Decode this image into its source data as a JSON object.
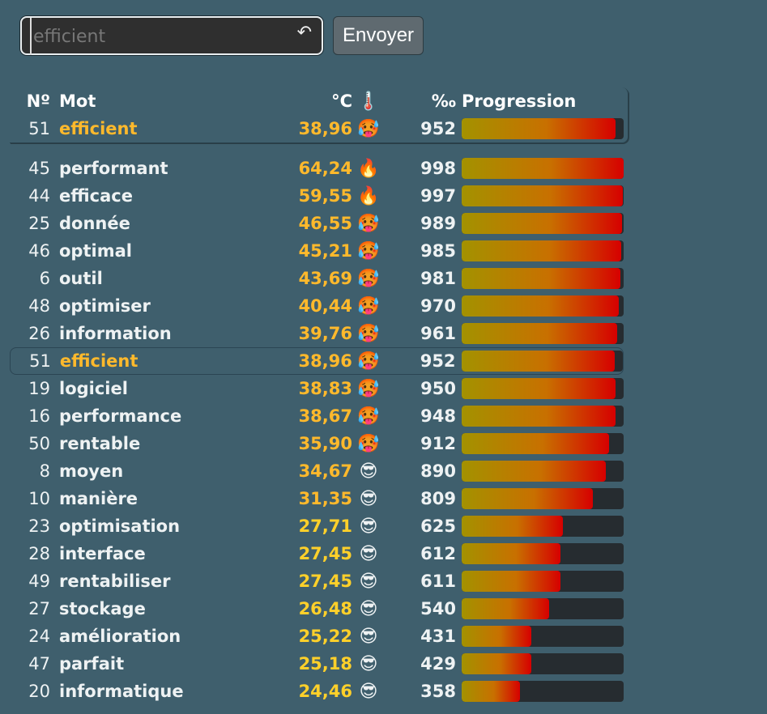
{
  "form": {
    "placeholder": "efficient",
    "send_label": "Envoyer",
    "undo_icon": "undo-icon"
  },
  "columns": {
    "num": "Nº",
    "word": "Mot",
    "temp": "°C",
    "temp_icon": "🌡️",
    "permil": "‰",
    "progress": "Progression"
  },
  "last_guess": {
    "num": "51",
    "word": "efficient",
    "temp": "38,96",
    "emoji": "🥵",
    "permil": "952",
    "progress": 0.952
  },
  "rows": [
    {
      "num": "45",
      "word": "performant",
      "temp": "64,24",
      "emoji": "🔥",
      "permil": "998",
      "progress": 0.998
    },
    {
      "num": "44",
      "word": "efficace",
      "temp": "59,55",
      "emoji": "🔥",
      "permil": "997",
      "progress": 0.997
    },
    {
      "num": "25",
      "word": "donnée",
      "temp": "46,55",
      "emoji": "🥵",
      "permil": "989",
      "progress": 0.989
    },
    {
      "num": "46",
      "word": "optimal",
      "temp": "45,21",
      "emoji": "🥵",
      "permil": "985",
      "progress": 0.985
    },
    {
      "num": "6",
      "word": "outil",
      "temp": "43,69",
      "emoji": "🥵",
      "permil": "981",
      "progress": 0.981
    },
    {
      "num": "48",
      "word": "optimiser",
      "temp": "40,44",
      "emoji": "🥵",
      "permil": "970",
      "progress": 0.97
    },
    {
      "num": "26",
      "word": "information",
      "temp": "39,76",
      "emoji": "🥵",
      "permil": "961",
      "progress": 0.961
    },
    {
      "num": "51",
      "word": "efficient",
      "temp": "38,96",
      "emoji": "🥵",
      "permil": "952",
      "progress": 0.952,
      "current": true
    },
    {
      "num": "19",
      "word": "logiciel",
      "temp": "38,83",
      "emoji": "🥵",
      "permil": "950",
      "progress": 0.95
    },
    {
      "num": "16",
      "word": "performance",
      "temp": "38,67",
      "emoji": "🥵",
      "permil": "948",
      "progress": 0.948
    },
    {
      "num": "50",
      "word": "rentable",
      "temp": "35,90",
      "emoji": "🥵",
      "permil": "912",
      "progress": 0.912
    },
    {
      "num": "8",
      "word": "moyen",
      "temp": "34,67",
      "emoji": "😎",
      "permil": "890",
      "progress": 0.89
    },
    {
      "num": "10",
      "word": "manière",
      "temp": "31,35",
      "emoji": "😎",
      "permil": "809",
      "progress": 0.809
    },
    {
      "num": "23",
      "word": "optimisation",
      "temp": "27,71",
      "emoji": "😎",
      "permil": "625",
      "progress": 0.625
    },
    {
      "num": "28",
      "word": "interface",
      "temp": "27,45",
      "emoji": "😎",
      "permil": "612",
      "progress": 0.612
    },
    {
      "num": "49",
      "word": "rentabiliser",
      "temp": "27,45",
      "emoji": "😎",
      "permil": "611",
      "progress": 0.611
    },
    {
      "num": "27",
      "word": "stockage",
      "temp": "26,48",
      "emoji": "😎",
      "permil": "540",
      "progress": 0.54
    },
    {
      "num": "24",
      "word": "amélioration",
      "temp": "25,22",
      "emoji": "😎",
      "permil": "431",
      "progress": 0.431
    },
    {
      "num": "47",
      "word": "parfait",
      "temp": "25,18",
      "emoji": "😎",
      "permil": "429",
      "progress": 0.429
    },
    {
      "num": "20",
      "word": "informatique",
      "temp": "24,46",
      "emoji": "😎",
      "permil": "358",
      "progress": 0.358
    }
  ]
}
